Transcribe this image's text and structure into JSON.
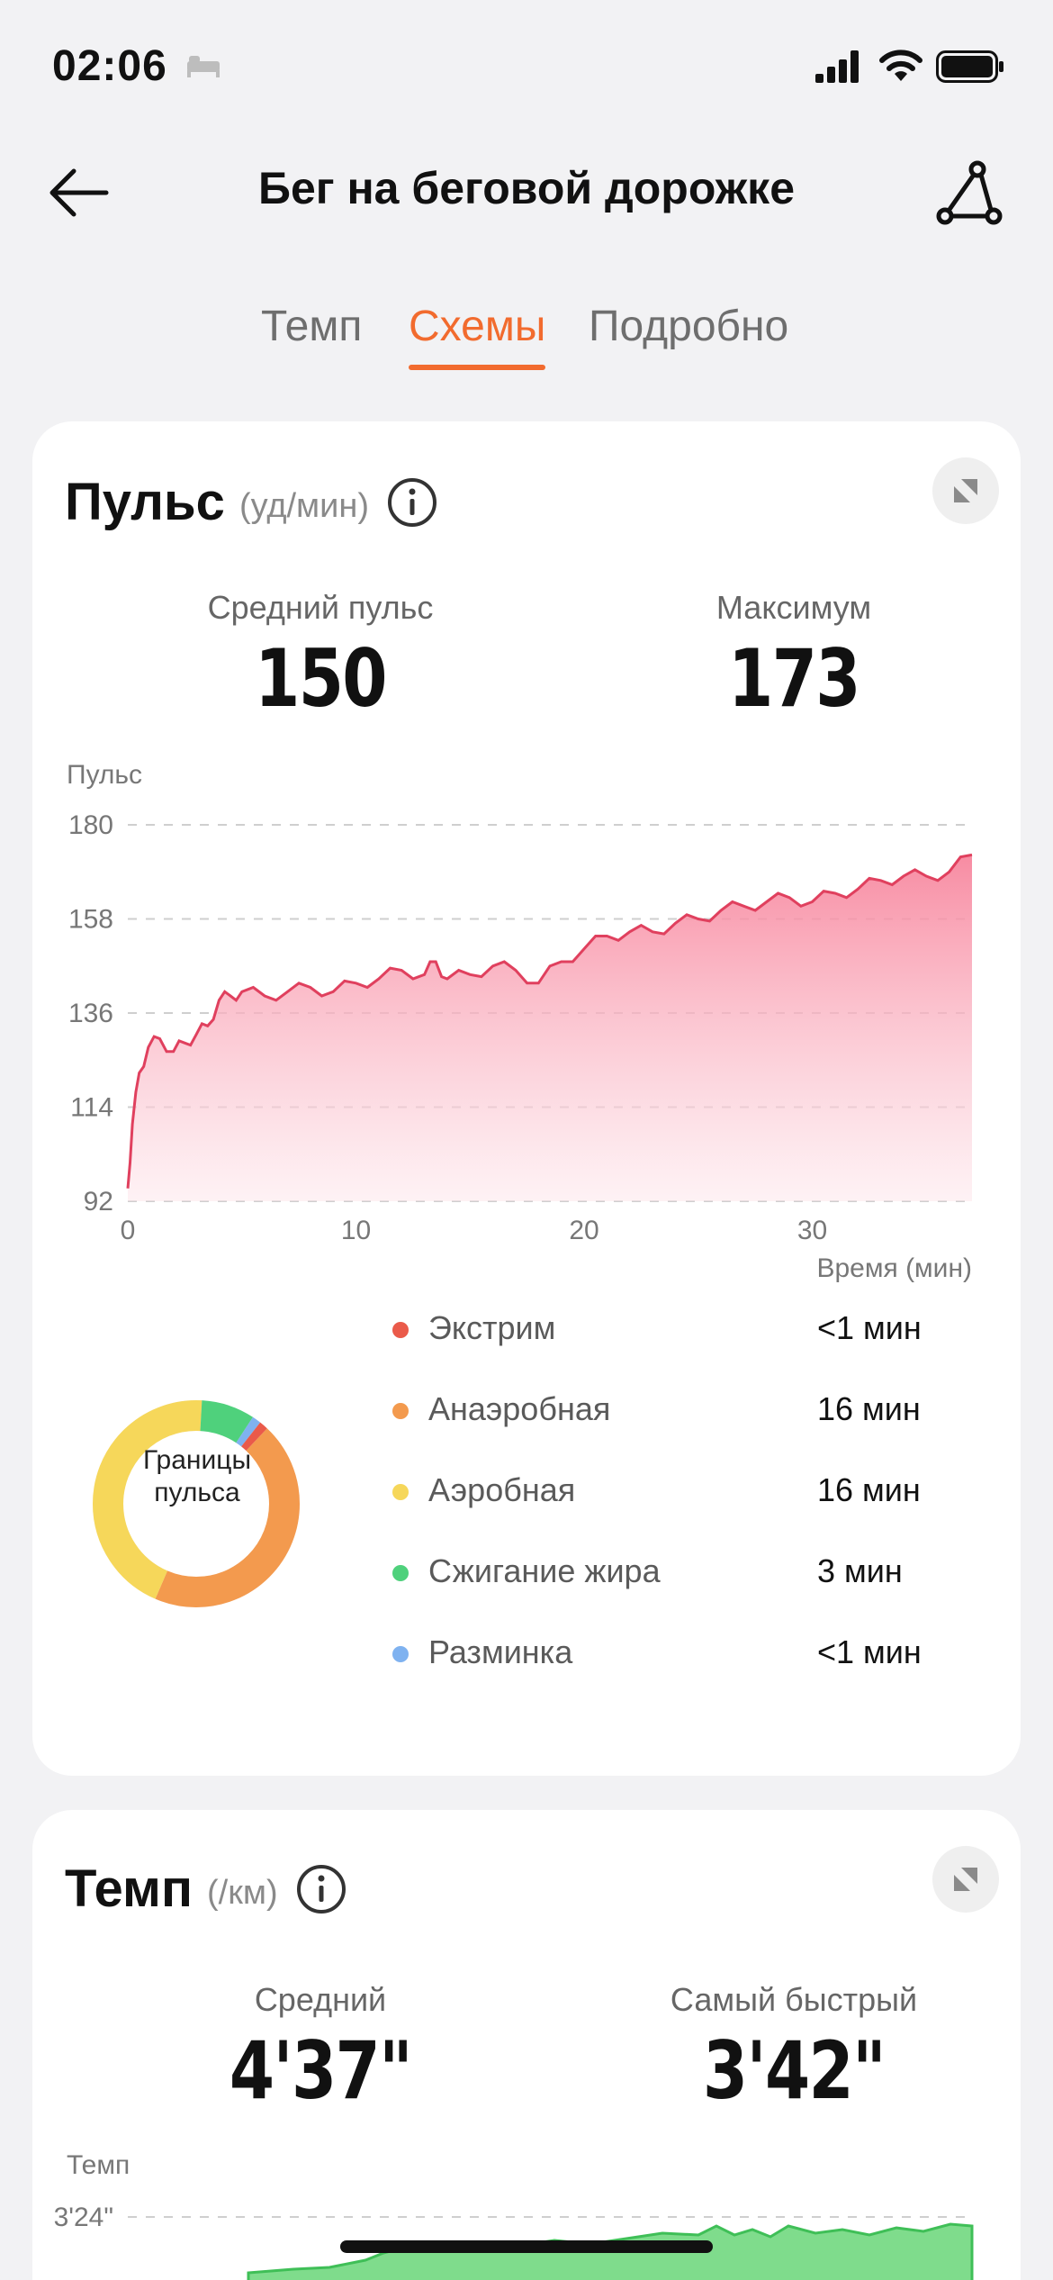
{
  "status_bar": {
    "time": "02:06"
  },
  "nav": {
    "title": "Бег на беговой дорожке"
  },
  "tabs": [
    {
      "label": "Темп",
      "active": false
    },
    {
      "label": "Схемы",
      "active": true
    },
    {
      "label": "Подробно",
      "active": false
    }
  ],
  "pulse_card": {
    "title": "Пульс",
    "unit": "(уд/мин)",
    "avg_label": "Средний пульс",
    "avg_value": "150",
    "max_label": "Максимум",
    "max_value": "173",
    "y_title": "Пульс",
    "x_title": "Время (мин)",
    "zones_label": "Границы пульса",
    "zones": [
      {
        "name": "Экстрим",
        "time": "<1 мин",
        "color": "#ea5a4a"
      },
      {
        "name": "Анаэробная",
        "time": "16 мин",
        "color": "#f39a4e"
      },
      {
        "name": "Аэробная",
        "time": "16 мин",
        "color": "#f6d75a"
      },
      {
        "name": "Сжигание жира",
        "time": "3 мин",
        "color": "#4fd17c"
      },
      {
        "name": "Разминка",
        "time": "<1 мин",
        "color": "#7fb2f0"
      }
    ]
  },
  "pace_card": {
    "title": "Темп",
    "unit": "(/км)",
    "avg_label": "Средний",
    "avg_value": "4'37\"",
    "best_label": "Самый быстрый",
    "best_value": "3'42\"",
    "y_title": "Темп",
    "y_top_tick": "3'24\""
  },
  "chart_data": [
    {
      "type": "area",
      "ylabel": "Пульс",
      "xlabel": "Время (мин)",
      "yticks": [
        92,
        114,
        136,
        158,
        180
      ],
      "xticks": [
        0,
        10,
        20,
        30
      ],
      "ylim": [
        92,
        180
      ],
      "xlim": [
        0,
        37
      ],
      "grid": true,
      "color": "#e0405e",
      "x": [
        0,
        0.2,
        0.5,
        0.9,
        1.4,
        2,
        2.5,
        3,
        3.5,
        4,
        4.5,
        5,
        6,
        7,
        8,
        9,
        10,
        11,
        12,
        13,
        13.5,
        14,
        15,
        16,
        17,
        18,
        19,
        20,
        21,
        22,
        23,
        24,
        25,
        26,
        27,
        28,
        29,
        30,
        31,
        32,
        33,
        34,
        35,
        36,
        37
      ],
      "y": [
        95,
        110,
        122,
        128,
        130,
        127,
        129,
        131,
        133,
        139,
        140,
        141,
        140,
        141,
        142,
        141,
        143,
        144,
        146,
        145,
        148,
        144,
        145,
        147,
        146,
        143,
        148,
        151,
        154,
        155,
        155,
        157,
        158,
        160,
        161,
        162,
        163,
        162,
        164,
        165,
        167,
        168,
        168,
        169,
        173
      ]
    },
    {
      "type": "area",
      "ylabel": "Темп",
      "yticks_top": "3'24\"",
      "color": "#5cd06e"
    }
  ]
}
